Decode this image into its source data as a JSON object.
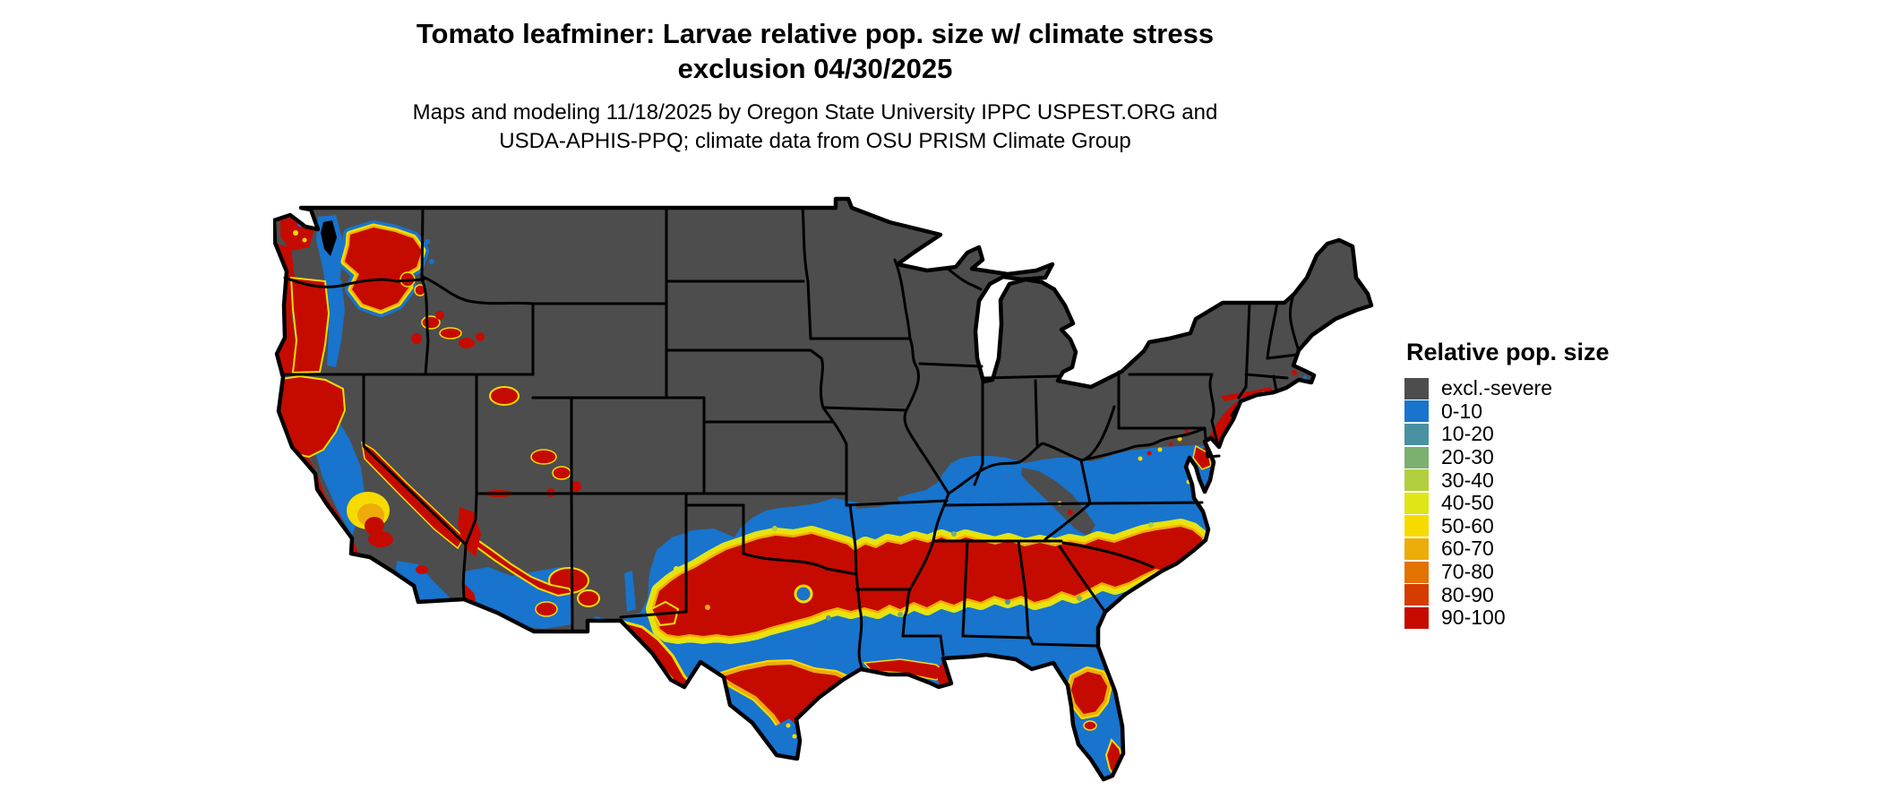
{
  "title": {
    "line1": "Tomato leafminer: Larvae relative pop. size w/ climate stress",
    "line2": "exclusion 04/30/2025"
  },
  "subtitle": {
    "line1": "Maps and modeling 11/18/2025 by Oregon State University IPPC USPEST.ORG and",
    "line2": "USDA-APHIS-PPQ; climate data from OSU PRISM Climate Group"
  },
  "legend": {
    "title": "Relative pop. size",
    "items": [
      {
        "label": "excl.-severe",
        "color": "#4d4d4d"
      },
      {
        "label": "0-10",
        "color": "#1874cd"
      },
      {
        "label": "10-20",
        "color": "#4991a0"
      },
      {
        "label": "20-30",
        "color": "#7cb06f"
      },
      {
        "label": "30-40",
        "color": "#b2cf3e"
      },
      {
        "label": "40-50",
        "color": "#e0e517"
      },
      {
        "label": "50-60",
        "color": "#f7db00"
      },
      {
        "label": "60-70",
        "color": "#eeac0b"
      },
      {
        "label": "70-80",
        "color": "#e27300"
      },
      {
        "label": "80-90",
        "color": "#d63c00"
      },
      {
        "label": "90-100",
        "color": "#c50b00"
      }
    ]
  },
  "map": {
    "region": "Continental United States",
    "water_color": "#ffffff",
    "border_color": "#000000"
  }
}
